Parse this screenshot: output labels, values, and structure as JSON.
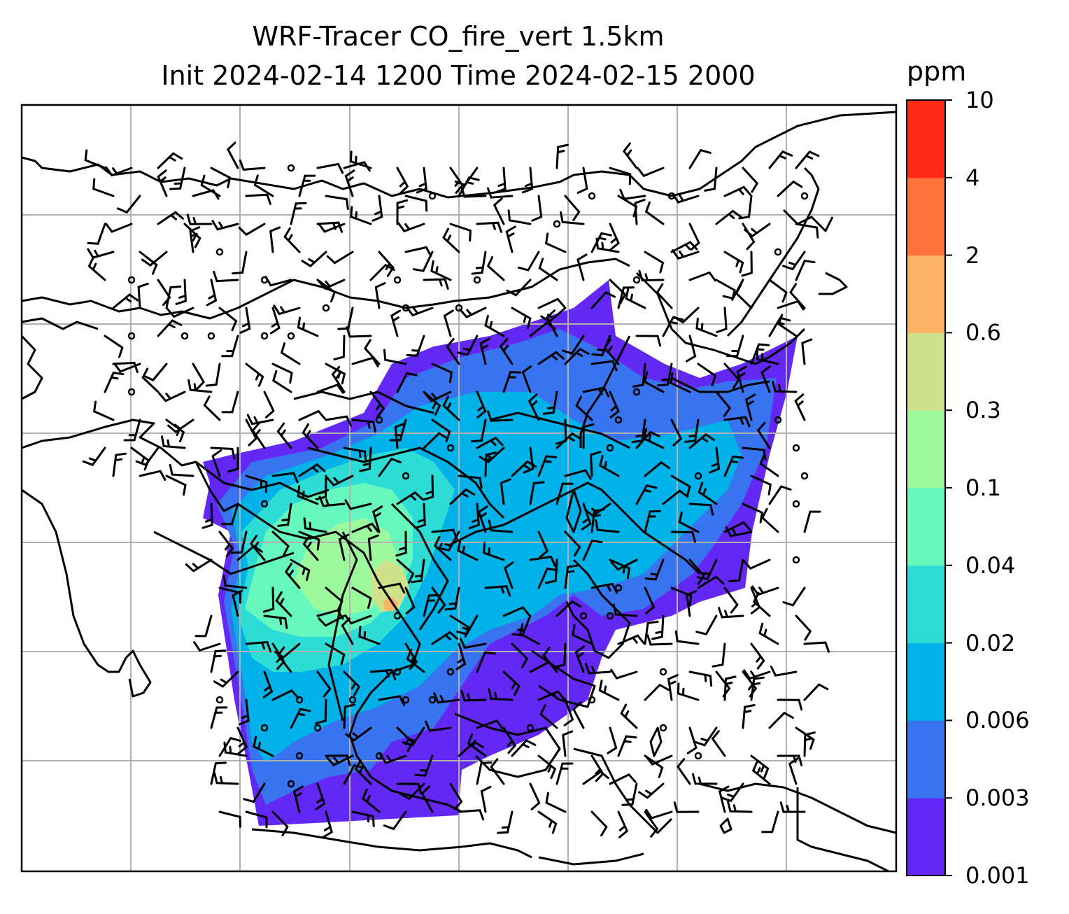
{
  "title": {
    "line1": "WRF-Tracer CO_fire_vert 1.5km",
    "line2": "Init 2024-02-14 1200 Time 2024-02-15 2000"
  },
  "colorbar": {
    "label": "ppm",
    "ticks": [
      "0.001",
      "0.003",
      "0.006",
      "0.02",
      "0.04",
      "0.1",
      "0.3",
      "0.6",
      "2",
      "4",
      "10"
    ],
    "colors": [
      "#6428f5",
      "#3874ef",
      "#00b2e8",
      "#2ddcd4",
      "#66f8bd",
      "#9cfa9c",
      "#cfe18a",
      "#fdb466",
      "#ff733a",
      "#ff2a18"
    ]
  },
  "map": {
    "gridlines": true,
    "grid_color": "#b0b0b0",
    "coastline_color": "#000000",
    "field": "CO_fire_vert",
    "wind_barbs": true
  }
}
